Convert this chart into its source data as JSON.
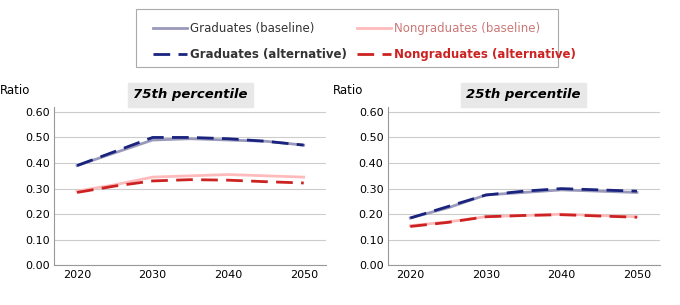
{
  "years": [
    2020,
    2025,
    2030,
    2035,
    2040,
    2045,
    2050
  ],
  "p75": {
    "grad_baseline": [
      0.39,
      0.44,
      0.49,
      0.495,
      0.49,
      0.485,
      0.47
    ],
    "grad_alt": [
      0.39,
      0.445,
      0.5,
      0.5,
      0.495,
      0.485,
      0.47
    ],
    "nongrad_baseline": [
      0.29,
      0.315,
      0.345,
      0.35,
      0.355,
      0.35,
      0.345
    ],
    "nongrad_alt": [
      0.285,
      0.31,
      0.33,
      0.335,
      0.333,
      0.327,
      0.322
    ]
  },
  "p25": {
    "grad_baseline": [
      0.185,
      0.225,
      0.275,
      0.285,
      0.295,
      0.29,
      0.285
    ],
    "grad_alt": [
      0.185,
      0.23,
      0.275,
      0.29,
      0.3,
      0.295,
      0.29
    ],
    "nongrad_baseline": [
      0.155,
      0.17,
      0.19,
      0.195,
      0.2,
      0.195,
      0.19
    ],
    "nongrad_alt": [
      0.152,
      0.168,
      0.19,
      0.195,
      0.198,
      0.193,
      0.188
    ]
  },
  "colors": {
    "grad_baseline": "#9999bb",
    "grad_alt": "#1a237e",
    "nongrad_baseline": "#ffbbbb",
    "nongrad_alt": "#cc2222"
  },
  "legend": {
    "grad_baseline_label": "Graduates (baseline)",
    "grad_alt_label": "Graduates (alternative)",
    "nongrad_baseline_label": "Nongraduates (baseline)",
    "nongrad_alt_label": "Nongraduates (alternative)"
  },
  "ylim": [
    0.0,
    0.62
  ],
  "yticks": [
    0.0,
    0.1,
    0.2,
    0.3,
    0.4,
    0.5,
    0.6
  ],
  "title_p75": "75th percentile",
  "title_p25": "25th percentile",
  "ylabel": "Ratio",
  "title_bg": "#e8e8e8"
}
